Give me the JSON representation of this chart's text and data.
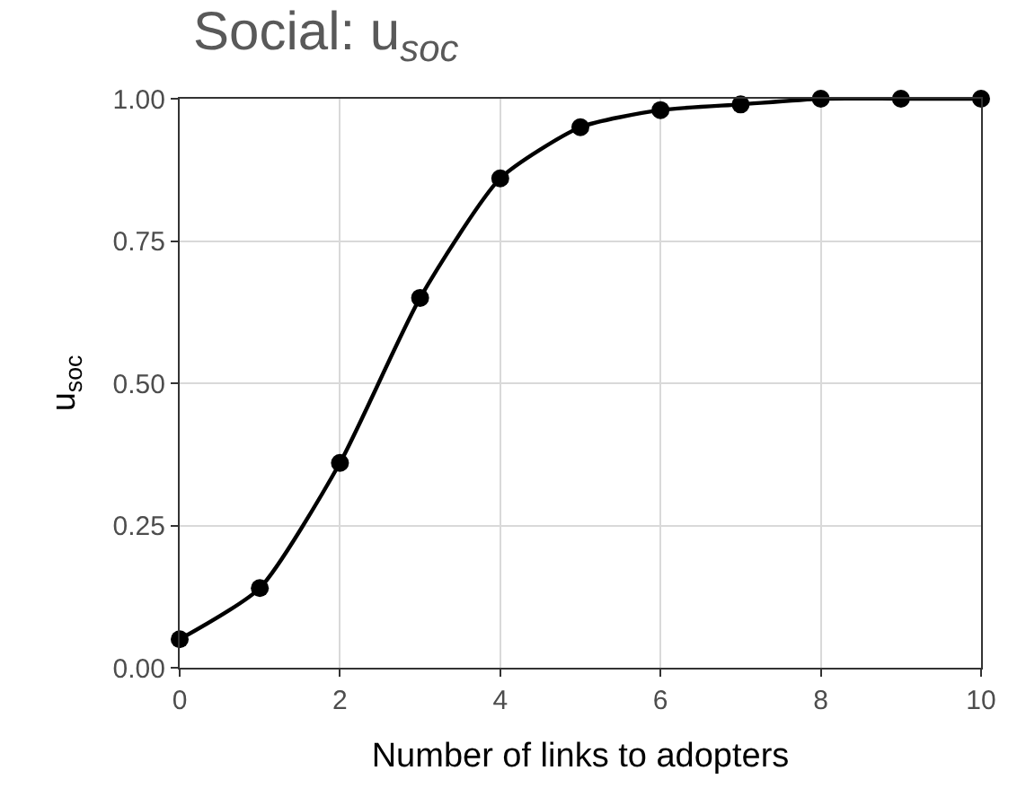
{
  "chart_data": {
    "type": "line",
    "title": "Social: u$_{soc}$",
    "xlabel": "Number of links to adopters",
    "ylabel": "u$_{soc}$",
    "x": [
      0,
      1,
      2,
      3,
      4,
      5,
      6,
      7,
      8,
      9,
      10
    ],
    "series": [
      {
        "color": "#000000",
        "values": [
          0.05,
          0.14,
          0.36,
          0.65,
          0.86,
          0.95,
          0.98,
          0.99,
          1.0,
          1.0,
          1.0
        ]
      }
    ],
    "xlim": [
      0,
      10
    ],
    "xticks": [
      0,
      2,
      4,
      6,
      8,
      10
    ],
    "ylim": [
      0,
      1
    ],
    "yticks": [
      {
        "value": 0,
        "label": "0.00"
      },
      {
        "value": 0.25,
        "label": "0.25"
      },
      {
        "value": 0.5,
        "label": "0.50"
      },
      {
        "value": 0.75,
        "label": "0.75"
      },
      {
        "value": 1,
        "label": "1.00"
      }
    ],
    "grid": true,
    "legend": false,
    "marker": "circle",
    "line_style": "solid"
  }
}
